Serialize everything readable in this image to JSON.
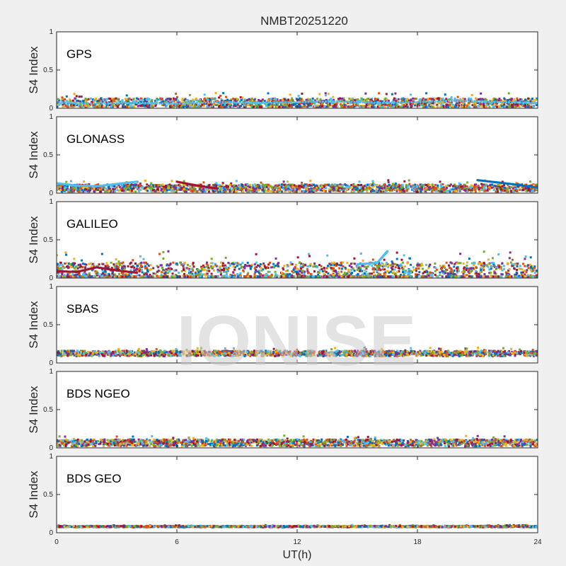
{
  "figure": {
    "title": "NMBT20251220",
    "watermark": "IONISE",
    "xlabel": "UT(h)",
    "ylabel": "S4 Index",
    "xticks": [
      "0",
      "6",
      "12",
      "18",
      "24"
    ],
    "yticks": [
      "0",
      "0.5",
      "1"
    ]
  },
  "colors": [
    "#0072BD",
    "#D95319",
    "#EDB120",
    "#7E2F8E",
    "#77AC30",
    "#4DBEEE",
    "#A2142F"
  ],
  "chart_data": [
    {
      "type": "scatter",
      "panel": "GPS",
      "xlim": [
        0,
        24
      ],
      "ylim": [
        0,
        1
      ],
      "base_level": 0.06,
      "max_level": 0.2,
      "series": [
        {
          "x": [
            0,
            2,
            4,
            6,
            8,
            10,
            12,
            14,
            16,
            18,
            20,
            22,
            24
          ],
          "y": [
            0.08,
            0.06,
            0.07,
            0.06,
            0.08,
            0.07,
            0.08,
            0.09,
            0.07,
            0.08,
            0.1,
            0.08,
            0.07
          ]
        }
      ]
    },
    {
      "type": "scatter",
      "panel": "GLONASS",
      "xlim": [
        0,
        24
      ],
      "ylim": [
        0,
        1
      ],
      "base_level": 0.06,
      "max_level": 0.17,
      "series": [
        {
          "x": [
            0,
            1,
            2,
            3,
            4
          ],
          "y": [
            0.13,
            0.1,
            0.09,
            0.12,
            0.15
          ]
        },
        {
          "x": [
            6,
            7,
            8
          ],
          "y": [
            0.15,
            0.1,
            0.06
          ]
        },
        {
          "x": [
            21,
            22,
            23,
            24
          ],
          "y": [
            0.17,
            0.14,
            0.11,
            0.07
          ]
        }
      ]
    },
    {
      "type": "scatter",
      "panel": "GALILEO",
      "xlim": [
        0,
        24
      ],
      "ylim": [
        0,
        1
      ],
      "base_level": 0.06,
      "max_level": 0.35,
      "series": [
        {
          "x": [
            15,
            16,
            16.5
          ],
          "y": [
            0.18,
            0.2,
            0.35
          ]
        },
        {
          "x": [
            0,
            1,
            2,
            3,
            4
          ],
          "y": [
            0.09,
            0.08,
            0.14,
            0.1,
            0.07
          ]
        }
      ]
    },
    {
      "type": "scatter",
      "panel": "SBAS",
      "xlim": [
        0,
        24
      ],
      "ylim": [
        0,
        1
      ],
      "base_level": 0.12,
      "max_level": 0.2,
      "series": []
    },
    {
      "type": "scatter",
      "panel": "BDS NGEO",
      "xlim": [
        0,
        24
      ],
      "ylim": [
        0,
        1
      ],
      "base_level": 0.06,
      "max_level": 0.16,
      "series": []
    },
    {
      "type": "scatter",
      "panel": "BDS GEO",
      "xlim": [
        0,
        24
      ],
      "ylim": [
        0,
        1
      ],
      "base_level": 0.08,
      "max_level": 0.1,
      "series": []
    }
  ]
}
